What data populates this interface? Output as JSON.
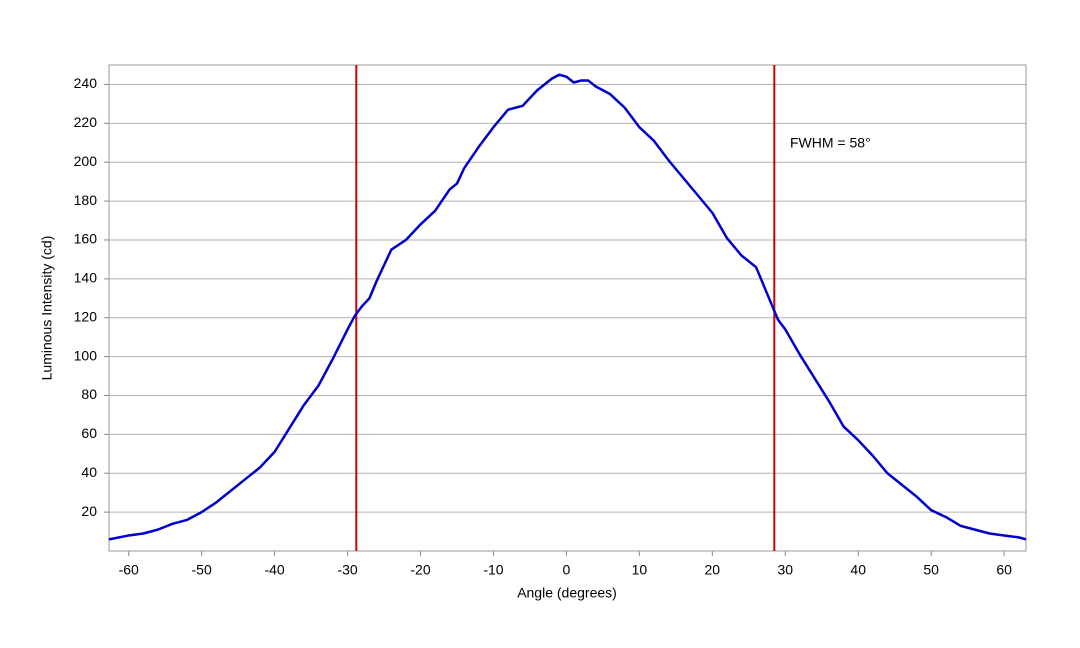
{
  "chart_data": {
    "type": "line",
    "x_label": "Angle (degrees)",
    "y_label": "Luminous Intensity (cd)",
    "annotation": "FWHM = 58°",
    "x": [
      -62.7,
      -60,
      -58,
      -56,
      -54,
      -52,
      -50,
      -48,
      -46,
      -44,
      -42,
      -40,
      -38,
      -36,
      -35,
      -34,
      -32,
      -30,
      -29,
      -28,
      -27,
      -26,
      -25,
      -24,
      -22,
      -20,
      -18,
      -16,
      -15,
      -14,
      -12,
      -10,
      -8,
      -6,
      -4,
      -2,
      -1,
      0,
      1,
      2,
      3,
      4,
      6,
      8,
      10,
      12,
      14,
      16,
      18,
      20,
      22,
      24,
      26,
      27,
      28,
      29,
      30,
      32,
      34,
      36,
      38,
      40,
      42,
      44,
      46,
      48,
      50,
      52,
      54,
      56,
      58,
      60,
      62,
      63
    ],
    "series": [
      {
        "name": "Luminous Intensity",
        "color": "#0000cc",
        "values": [
          6,
          8,
          9,
          11,
          14,
          16,
          20,
          25,
          31,
          37,
          43,
          51,
          63,
          75,
          80,
          85,
          99,
          114,
          121,
          126,
          130,
          139,
          147,
          155,
          160,
          168,
          175,
          186,
          189,
          197,
          208,
          218,
          227,
          229,
          237,
          243,
          245,
          244,
          241,
          242,
          242,
          239,
          235,
          228,
          218,
          211,
          201,
          192,
          183,
          174,
          161,
          152,
          146,
          137,
          128,
          119,
          114,
          101,
          89,
          77,
          64,
          57,
          49,
          40,
          34,
          28,
          21,
          17.5,
          13,
          11,
          9,
          8,
          7,
          6
        ]
      }
    ],
    "vlines": [
      -28.8,
      28.5
    ],
    "vline_color": "#cc0000",
    "xlim": [
      -62.7,
      63
    ],
    "ylim": [
      0,
      250
    ],
    "xticks": [
      -60,
      -50,
      -40,
      -30,
      -20,
      -10,
      0,
      10,
      20,
      30,
      40,
      50,
      60
    ],
    "yticks": [
      20,
      40,
      60,
      80,
      100,
      120,
      140,
      160,
      180,
      200,
      220,
      240
    ],
    "grid": true
  }
}
